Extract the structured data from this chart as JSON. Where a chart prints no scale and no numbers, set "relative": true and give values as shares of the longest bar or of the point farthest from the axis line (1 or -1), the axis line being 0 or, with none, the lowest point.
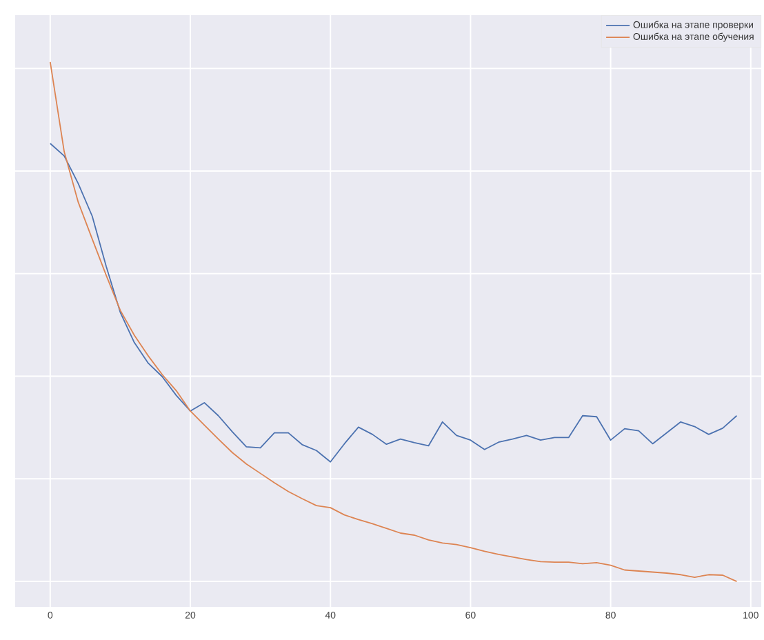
{
  "chart_data": {
    "type": "line",
    "relative": true,
    "grid": true,
    "legend": "top right",
    "xlim": [
      -5,
      101.5
    ],
    "xticks": [
      0,
      20,
      40,
      60,
      80,
      100
    ],
    "series": [
      {
        "name": "Ошибка на этапе проверки",
        "color": "#4c72b0",
        "x": [
          0,
          2,
          4,
          6,
          8,
          10,
          12,
          14,
          16,
          18,
          20,
          22,
          24,
          26,
          28,
          30,
          32,
          34,
          36,
          38,
          40,
          42,
          44,
          46,
          48,
          50,
          52,
          54,
          56,
          58,
          60,
          62,
          64,
          66,
          68,
          70,
          72,
          74,
          76,
          78,
          80,
          82,
          84,
          86,
          88,
          90,
          92,
          94,
          96,
          98
        ],
        "values": [
          0.843,
          0.819,
          0.766,
          0.703,
          0.606,
          0.518,
          0.46,
          0.42,
          0.394,
          0.358,
          0.328,
          0.344,
          0.319,
          0.288,
          0.259,
          0.257,
          0.286,
          0.286,
          0.263,
          0.252,
          0.23,
          0.265,
          0.297,
          0.283,
          0.264,
          0.274,
          0.267,
          0.261,
          0.307,
          0.281,
          0.272,
          0.254,
          0.268,
          0.274,
          0.281,
          0.272,
          0.277,
          0.277,
          0.319,
          0.317,
          0.272,
          0.294,
          0.29,
          0.265,
          0.286,
          0.307,
          0.298,
          0.283,
          0.295,
          0.319
        ]
      },
      {
        "name": "Ошибка на этапе обучения",
        "color": "#dd8452",
        "x": [
          0,
          2,
          4,
          6,
          8,
          10,
          12,
          14,
          16,
          18,
          20,
          22,
          24,
          26,
          28,
          30,
          32,
          34,
          36,
          38,
          40,
          42,
          44,
          46,
          48,
          50,
          52,
          54,
          56,
          58,
          60,
          62,
          64,
          66,
          68,
          70,
          72,
          74,
          76,
          78,
          80,
          82,
          84,
          86,
          88,
          90,
          92,
          94,
          96,
          98
        ],
        "values": [
          1.0,
          0.827,
          0.73,
          0.659,
          0.589,
          0.522,
          0.474,
          0.434,
          0.398,
          0.367,
          0.328,
          0.301,
          0.274,
          0.248,
          0.226,
          0.208,
          0.19,
          0.173,
          0.159,
          0.146,
          0.142,
          0.128,
          0.119,
          0.111,
          0.102,
          0.093,
          0.089,
          0.08,
          0.074,
          0.071,
          0.065,
          0.058,
          0.052,
          0.047,
          0.042,
          0.038,
          0.037,
          0.037,
          0.034,
          0.036,
          0.031,
          0.022,
          0.02,
          0.018,
          0.016,
          0.013,
          0.008,
          0.013,
          0.012,
          0.0
        ]
      }
    ]
  }
}
